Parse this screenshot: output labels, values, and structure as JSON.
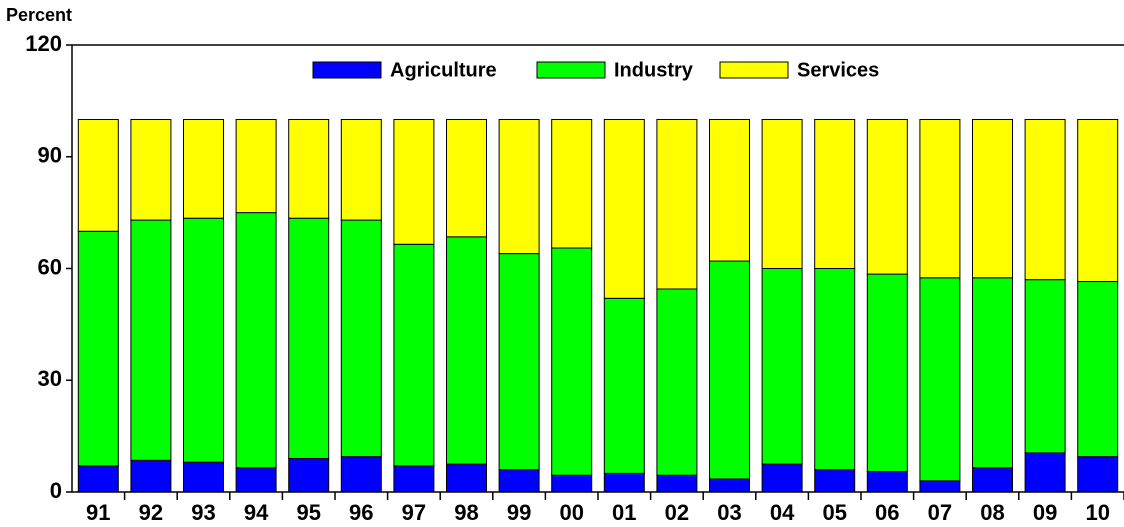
{
  "chart_data": {
    "type": "stacked_bar",
    "y_label": "Percent",
    "categories": [
      "91",
      "92",
      "93",
      "94",
      "95",
      "96",
      "97",
      "98",
      "99",
      "00",
      "01",
      "02",
      "03",
      "04",
      "05",
      "06",
      "07",
      "08",
      "09",
      "10"
    ],
    "series": [
      {
        "name": "Agriculture",
        "color": "#0000ff",
        "values": [
          7,
          8.5,
          8,
          6.5,
          9,
          9.5,
          7,
          7.5,
          6,
          4.5,
          5,
          4.5,
          3.5,
          7.5,
          6,
          5.5,
          3,
          6.5,
          10.5,
          9.5
        ]
      },
      {
        "name": "Industry",
        "color": "#00ff00",
        "values": [
          63,
          64.5,
          65.5,
          68.5,
          64.5,
          63.5,
          59.5,
          61,
          58,
          61,
          47,
          50,
          58.5,
          52.5,
          54,
          53,
          54.5,
          51,
          46.5,
          47
        ]
      },
      {
        "name": "Services",
        "color": "#ffff00",
        "values": [
          30,
          27,
          26.5,
          25,
          26.5,
          27,
          33.5,
          31.5,
          36,
          34.5,
          48,
          45.5,
          38,
          40,
          40,
          41.5,
          42.5,
          42.5,
          43,
          43.5
        ]
      }
    ],
    "ylim": [
      0,
      120
    ],
    "yticks": [
      0,
      30,
      60,
      90,
      120
    ],
    "legend": "top"
  }
}
